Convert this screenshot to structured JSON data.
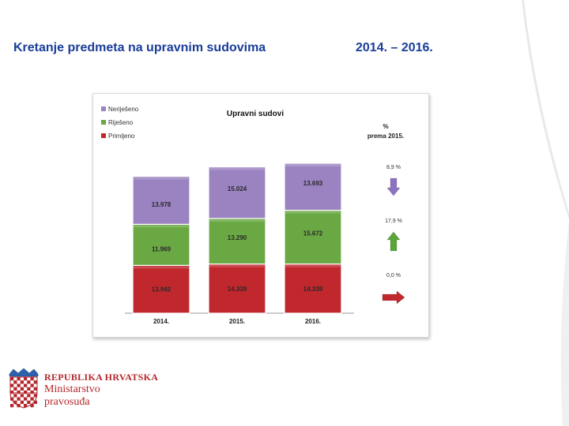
{
  "slide": {
    "title": "Kretanje predmeta na upravnim sudovima",
    "years": "2014. – 2016."
  },
  "chart_data": {
    "type": "bar",
    "stacked": true,
    "title": "Upravni sudovi",
    "categories": [
      "2014.",
      "2015.",
      "2016."
    ],
    "series": [
      {
        "name": "Primljeno",
        "values": [
          13942,
          14339,
          14339
        ],
        "labels": [
          "13.942",
          "14.339",
          "14.339"
        ],
        "color": "#c0282d"
      },
      {
        "name": "Riješeno",
        "values": [
          11969,
          13290,
          15672
        ],
        "labels": [
          "11.969",
          "13.290",
          "15.672"
        ],
        "color": "#6aa843"
      },
      {
        "name": "Neriješeno",
        "values": [
          13978,
          15024,
          13693
        ],
        "labels": [
          "13.978",
          "15.024",
          "13.693"
        ],
        "color": "#9a83c0"
      }
    ],
    "legend_order": [
      "Neriješeno",
      "Riješeno",
      "Primljeno"
    ],
    "legend_position": "top-left",
    "change_header": [
      "%",
      "prema 2015."
    ],
    "changes": [
      {
        "series": "Neriješeno",
        "label": "8,9  %",
        "direction": "down",
        "color": "#8e72c2"
      },
      {
        "series": "Riješeno",
        "label": "17,9  %",
        "direction": "up",
        "color": "#5aa639"
      },
      {
        "series": "Primljeno",
        "label": "0,0  %",
        "direction": "right",
        "color": "#c0282d"
      }
    ]
  },
  "logo": {
    "line1": "REPUBLIKA HRVATSKA",
    "line2": "Ministarstvo",
    "line3": "pravosuđa"
  },
  "colors": {
    "title": "#1a3d99",
    "logo": "#b3262b"
  }
}
